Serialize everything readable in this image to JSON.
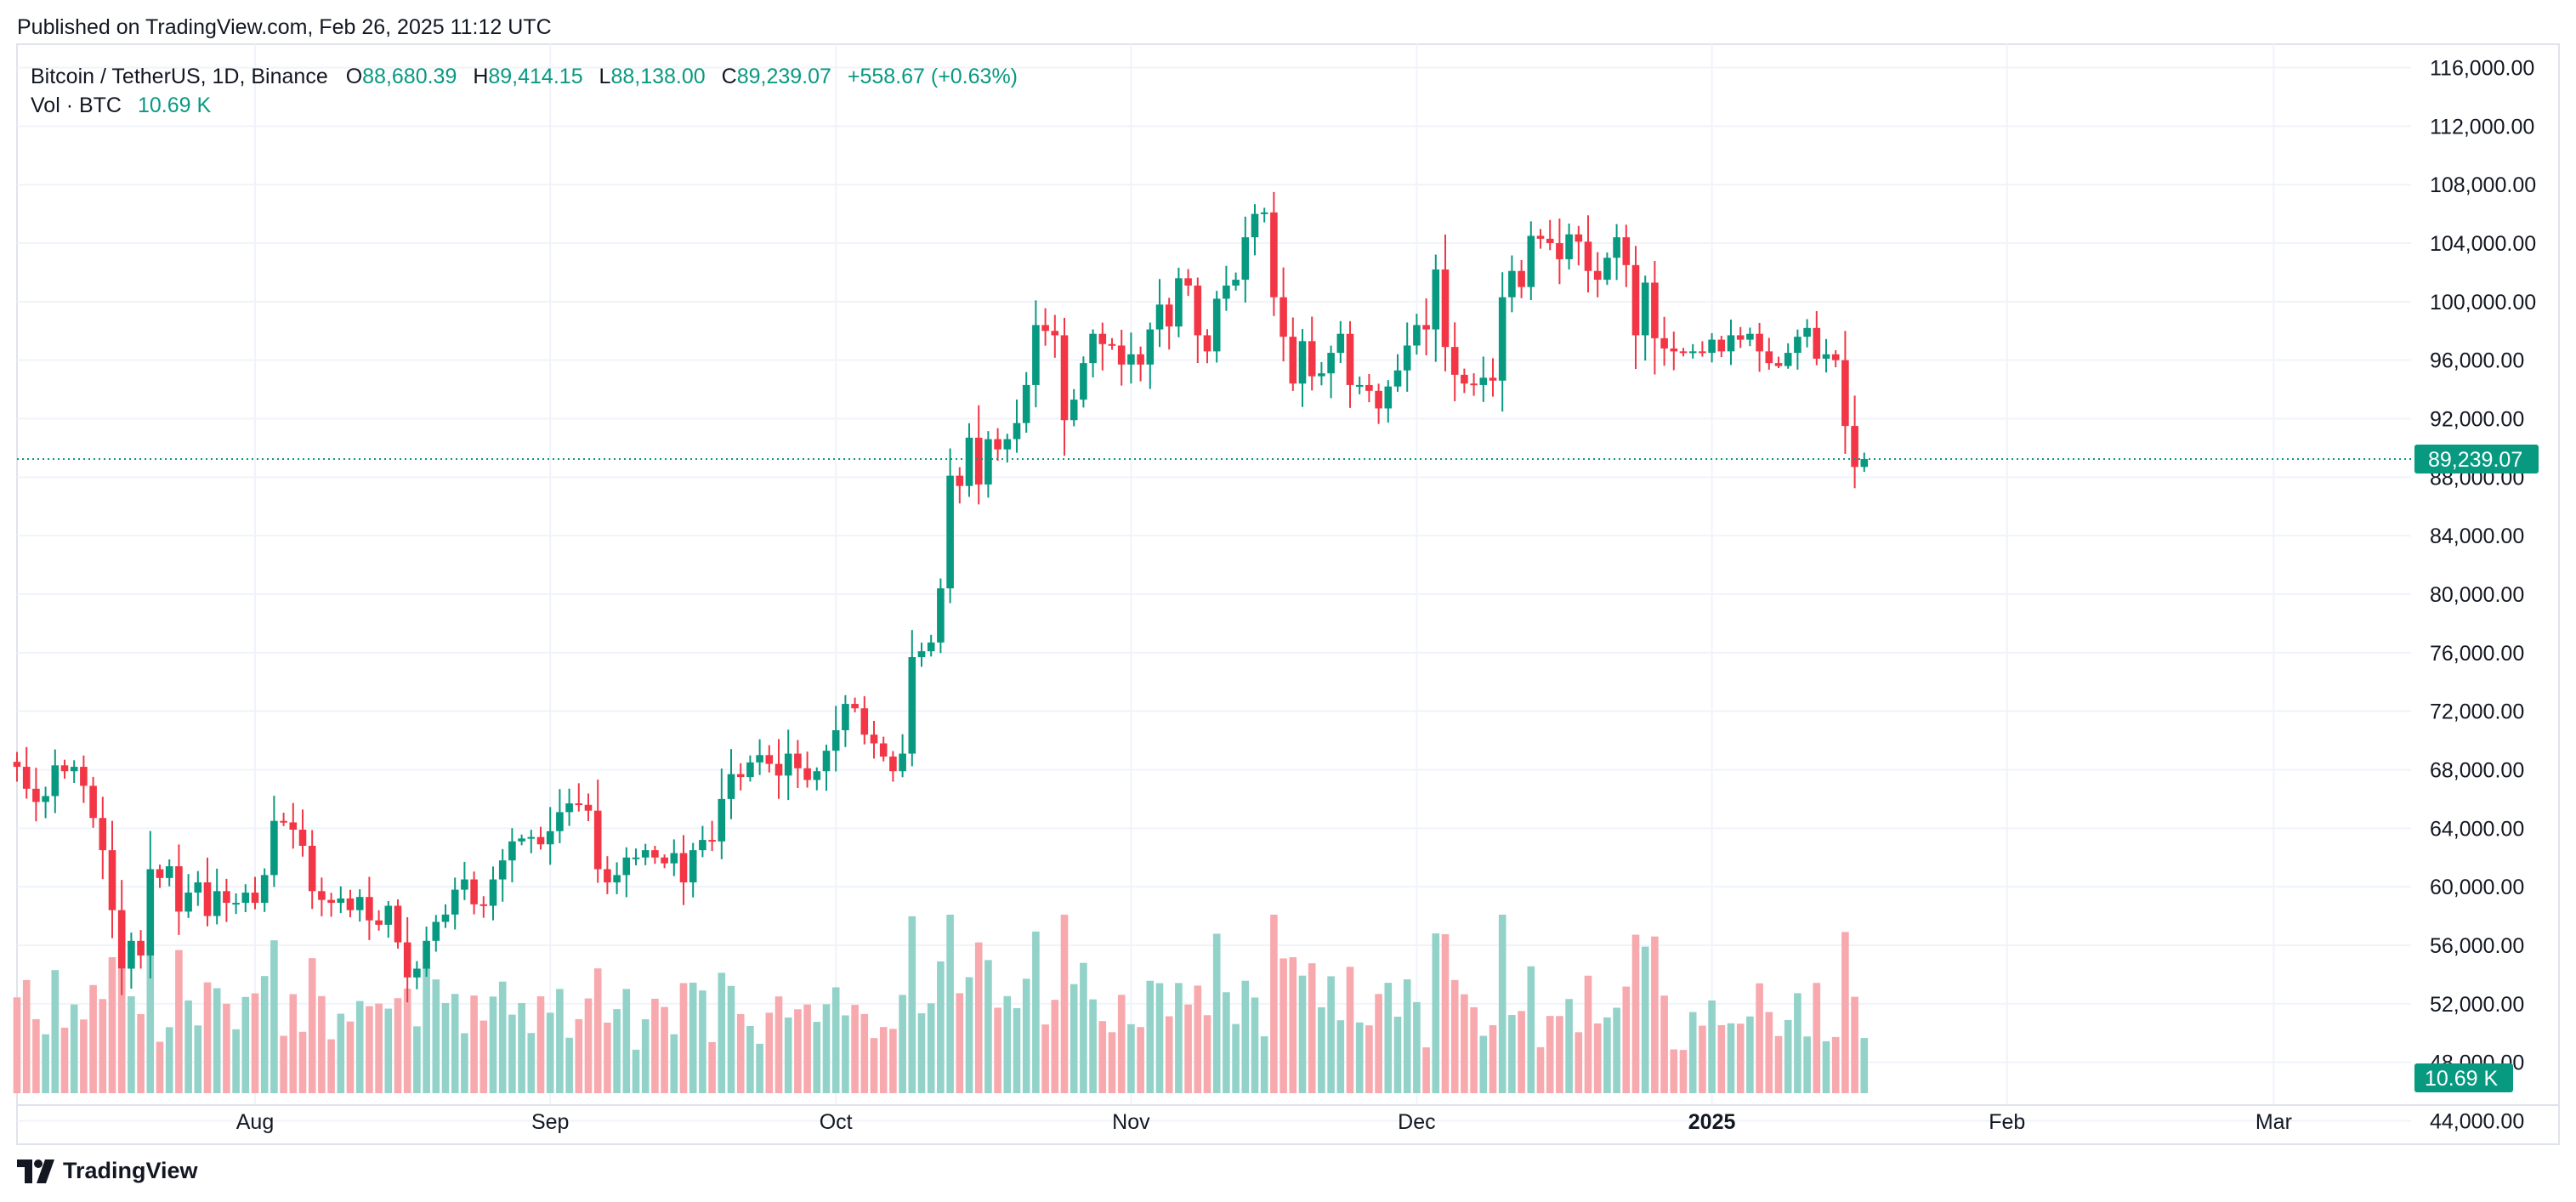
{
  "header": {
    "published": "Published on TradingView.com, Feb 26, 2025 11:12 UTC"
  },
  "footer": {
    "brand": "TradingView"
  },
  "colors": {
    "up": "#089981",
    "down": "#f23645",
    "vol_up": "#92d2c9",
    "vol_down": "#f7a9ae",
    "grid": "#f0f3fa",
    "border": "#e0e3eb"
  },
  "legend": {
    "symbol": "Bitcoin / TetherUS, 1D, Binance",
    "o_label": "O",
    "o": "88,680.39",
    "h_label": "H",
    "h": "89,414.15",
    "l_label": "L",
    "l": "88,138.00",
    "c_label": "C",
    "c": "89,239.07",
    "change": "+558.67 (+0.63%)",
    "vol_label": "Vol · BTC",
    "vol": "10.69 K"
  },
  "chart_data": {
    "type": "candlestick",
    "symbol": "Bitcoin / TetherUS",
    "interval": "1D",
    "exchange": "Binance",
    "x_labels": [
      {
        "label": "Aug",
        "index": 25,
        "bold": false
      },
      {
        "label": "Sep",
        "index": 56,
        "bold": false
      },
      {
        "label": "Oct",
        "index": 86,
        "bold": false
      },
      {
        "label": "Nov",
        "index": 117,
        "bold": false
      },
      {
        "label": "Dec",
        "index": 147,
        "bold": false
      },
      {
        "label": "2025",
        "index": 178,
        "bold": true
      },
      {
        "label": "Feb",
        "index": 209,
        "bold": false
      },
      {
        "label": "Mar",
        "index": 237,
        "bold": false
      }
    ],
    "y_ticks": [
      116000,
      112000,
      108000,
      104000,
      100000,
      96000,
      92000,
      88000,
      84000,
      80000,
      76000,
      72000,
      68000,
      64000,
      60000,
      56000,
      52000,
      48000,
      44000
    ],
    "y_tick_labels": [
      "116,000.00",
      "112,000.00",
      "108,000.00",
      "104,000.00",
      "100,000.00",
      "96,000.00",
      "92,000.00",
      "88,000.00",
      "84,000.00",
      "80,000.00",
      "76,000.00",
      "72,000.00",
      "68,000.00",
      "64,000.00",
      "60,000.00",
      "56,000.00",
      "52,000.00",
      "48,000.00",
      "44,000.00"
    ],
    "ylim": [
      42400,
      117600
    ],
    "last_price": 89239.07,
    "last_price_label": "89,239.07",
    "last_volume_label": "10.69 K",
    "closes": [
      68200,
      66700,
      65800,
      66200,
      68300,
      67900,
      68200,
      66900,
      64700,
      62500,
      58400,
      54400,
      56300,
      55300,
      61200,
      60600,
      61400,
      58300,
      59600,
      60300,
      58000,
      59700,
      58900,
      58900,
      59600,
      58900,
      60800,
      64500,
      64400,
      63900,
      62800,
      59700,
      59100,
      58900,
      59200,
      58400,
      59300,
      57700,
      57400,
      58700,
      56200,
      53800,
      54400,
      56300,
      57600,
      58100,
      59800,
      60500,
      58800,
      58700,
      60500,
      61800,
      63100,
      63300,
      63400,
      62900,
      63800,
      65100,
      65700,
      65600,
      65200,
      61200,
      60300,
      60800,
      62000,
      62000,
      62500,
      62000,
      61600,
      62300,
      60300,
      62500,
      63200,
      63100,
      66000,
      67700,
      67500,
      68500,
      69000,
      68400,
      67600,
      69100,
      68100,
      67300,
      67900,
      69300,
      70700,
      72500,
      72200,
      70400,
      69800,
      68900,
      67900,
      69100,
      75700,
      76100,
      76700,
      80400,
      88100,
      87400,
      90700,
      87500,
      90600,
      89900,
      90600,
      91700,
      94300,
      98400,
      98000,
      97700,
      91900,
      93300,
      95800,
      97800,
      97100,
      97000,
      95700,
      96400,
      95700,
      98100,
      99800,
      98300,
      101600,
      101100,
      97700,
      96600,
      100200,
      101100,
      101500,
      104400,
      106000,
      106100,
      100300,
      97600,
      94400,
      97300,
      94900,
      95100,
      96500,
      97800,
      94300,
      94300,
      93900,
      92700,
      94200,
      95300,
      97000,
      98400,
      98100,
      102200,
      96900,
      95000,
      94400,
      94300,
      94800,
      94600,
      100300,
      102100,
      101000,
      104500,
      104300,
      104000,
      102900,
      104600,
      104100,
      102100,
      101500,
      103000,
      104400,
      102500,
      97700,
      101300,
      97500,
      96800,
      96600,
      96500,
      96600,
      96500,
      97400,
      96600,
      97700,
      97400,
      97800,
      96600,
      95800,
      95600,
      96500,
      97600,
      98200,
      96100,
      96400,
      96000,
      91500,
      88700,
      89239.07
    ],
    "volume_note": "Volume shown as bars along the bottom of the price pane"
  }
}
